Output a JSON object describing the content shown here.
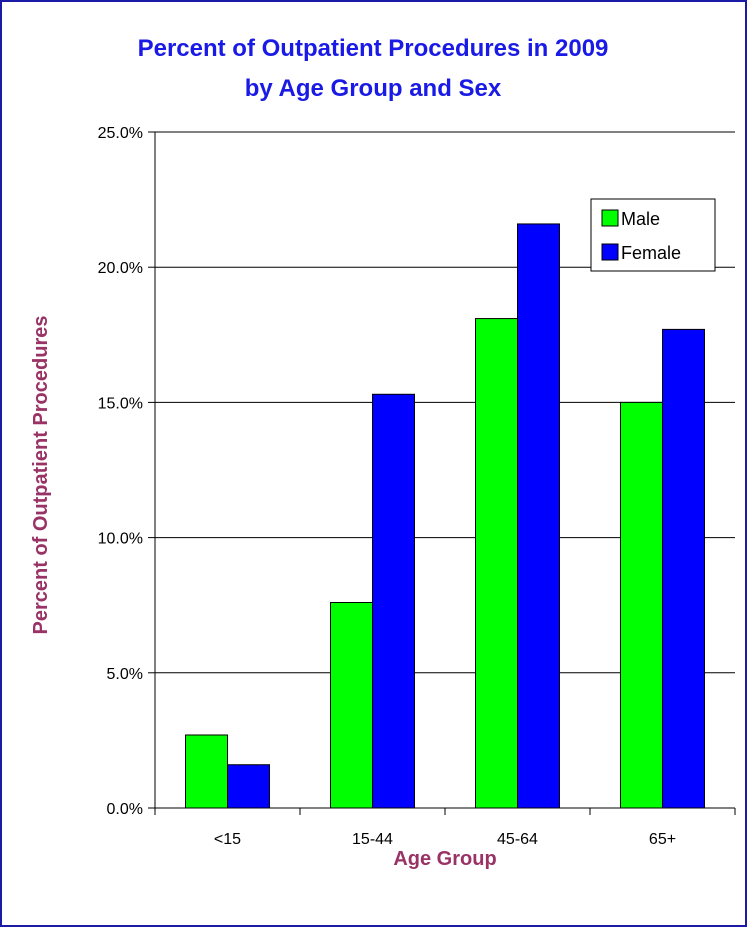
{
  "colors": {
    "title": "#1a1ae6",
    "axis_title": "#993366",
    "male": "#00ff00",
    "female": "#0000ff",
    "frame": "#1a1aa6"
  },
  "chart_data": {
    "type": "bar",
    "title": "Percent of Outpatient Procedures in 2009",
    "subtitle": "by Age Group and Sex",
    "xlabel": "Age Group",
    "ylabel": "Percent of Outpatient Procedures",
    "categories": [
      "<15",
      "15-44",
      "45-64",
      "65+"
    ],
    "series": [
      {
        "name": "Male",
        "color": "#00ff00",
        "values": [
          2.7,
          7.6,
          18.1,
          15.0
        ]
      },
      {
        "name": "Female",
        "color": "#0000ff",
        "values": [
          1.6,
          15.3,
          21.6,
          17.7
        ]
      }
    ],
    "ylim": [
      0,
      25
    ],
    "yticks": [
      0,
      5,
      10,
      15,
      20,
      25
    ],
    "ytick_labels": [
      "0.0%",
      "5.0%",
      "10.0%",
      "15.0%",
      "20.0%",
      "25.0%"
    ],
    "grid": true,
    "legend_position": "top-right"
  }
}
